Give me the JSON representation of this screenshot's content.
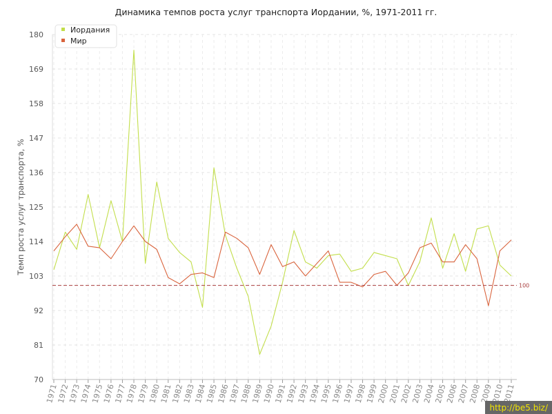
{
  "chart_data": {
    "type": "line",
    "title": "Динамика темпов роста услуг транспорта Иордании, %, 1971-2011 гг.",
    "ylabel": "Темп роста услуг транспорта, %",
    "xlabel": "",
    "ylim": [
      70,
      180
    ],
    "yticks": [
      70,
      81,
      92,
      103,
      114,
      125,
      136,
      147,
      158,
      169,
      180
    ],
    "grid": true,
    "legend_position": "top-left",
    "x": [
      "1971",
      "1972",
      "1973",
      "1974",
      "1975",
      "1976",
      "1977",
      "1978",
      "1979",
      "1980",
      "1981",
      "1982",
      "1983",
      "1984",
      "1985",
      "1986",
      "1987",
      "1988",
      "1989",
      "1990",
      "1991",
      "1992",
      "1993",
      "1994",
      "1995",
      "1996",
      "1997",
      "1998",
      "1999",
      "2000",
      "2001",
      "2002",
      "2003",
      "2004",
      "2005",
      "2006",
      "2007",
      "2008",
      "2009",
      "2010",
      "2011"
    ],
    "series": [
      {
        "name": "Иордания",
        "color": "#c2de4a",
        "values": [
          105,
          117,
          111.5,
          129,
          112,
          127,
          114,
          175,
          107,
          133,
          115,
          110.5,
          107.5,
          93,
          137.5,
          116,
          105.5,
          96.5,
          78,
          87,
          101,
          117.5,
          107.5,
          105.5,
          109.5,
          110,
          104.5,
          105.5,
          110.5,
          109.5,
          108.5,
          100,
          107.5,
          121.5,
          105.5,
          116.5,
          104.5,
          118,
          119,
          106.5,
          103
        ]
      },
      {
        "name": "Мир",
        "color": "#d9633c",
        "values": [
          111,
          115.5,
          119.5,
          112.5,
          112,
          108.5,
          114,
          119,
          114,
          111.5,
          102.5,
          100.5,
          103.5,
          104,
          102.5,
          117,
          115,
          112,
          103.5,
          113,
          106,
          107.5,
          103,
          107,
          111,
          101,
          101,
          99.5,
          103.5,
          104.5,
          100,
          104,
          112,
          113.5,
          107.5,
          107.5,
          113,
          108.5,
          93.5,
          111,
          114.5
        ]
      }
    ],
    "reference_line": {
      "value": 100,
      "label": "100",
      "color": "#a83c3c"
    }
  },
  "watermark": "http://be5.biz/"
}
